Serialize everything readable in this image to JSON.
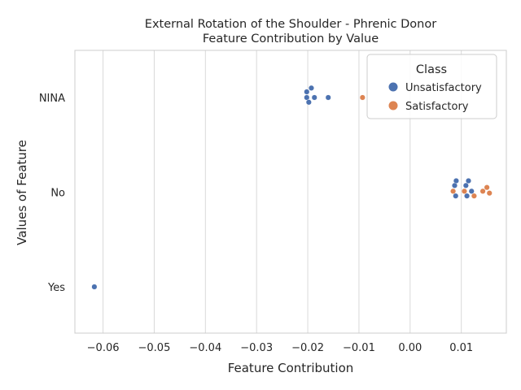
{
  "chart_data": {
    "type": "scatter",
    "title": "External Rotation of the Shoulder - Phrenic Donor",
    "subtitle": "Feature Contribution by Value",
    "xlabel": "Feature Contribution",
    "ylabel": "Values of Feature",
    "xlim": [
      -0.0655,
      0.0188
    ],
    "x_ticks": [
      -0.06,
      -0.05,
      -0.04,
      -0.03,
      -0.02,
      -0.01,
      0.0,
      0.01
    ],
    "x_tick_labels": [
      "−0.06",
      "−0.05",
      "−0.04",
      "−0.03",
      "−0.02",
      "−0.01",
      "0.00",
      "0.01"
    ],
    "categories": [
      "NINA",
      "No",
      "Yes"
    ],
    "grid": "vertical",
    "legend": {
      "title": "Class",
      "placement": "top-right"
    },
    "colors": {
      "Unsatisfactory": "#4c72b0",
      "Satisfactory": "#dd8452"
    },
    "series": [
      {
        "name": "Unsatisfactory",
        "color": "#4c72b0",
        "points": [
          {
            "category": "NINA",
            "x": -0.0202,
            "jitter": 0.06
          },
          {
            "category": "NINA",
            "x": -0.0193,
            "jitter": 0.1
          },
          {
            "category": "NINA",
            "x": -0.0202,
            "jitter": 0.0
          },
          {
            "category": "NINA",
            "x": -0.0187,
            "jitter": 0.0
          },
          {
            "category": "NINA",
            "x": -0.0198,
            "jitter": -0.05
          },
          {
            "category": "NINA",
            "x": -0.016,
            "jitter": 0.0
          },
          {
            "category": "No",
            "x": 0.009,
            "jitter": 0.12
          },
          {
            "category": "No",
            "x": 0.0114,
            "jitter": 0.12
          },
          {
            "category": "No",
            "x": 0.0087,
            "jitter": 0.07
          },
          {
            "category": "No",
            "x": 0.0109,
            "jitter": 0.07
          },
          {
            "category": "No",
            "x": 0.012,
            "jitter": 0.01
          },
          {
            "category": "No",
            "x": 0.0089,
            "jitter": -0.04
          },
          {
            "category": "No",
            "x": 0.0111,
            "jitter": -0.04
          },
          {
            "category": "Yes",
            "x": -0.0617,
            "jitter": 0.0
          }
        ]
      },
      {
        "name": "Satisfactory",
        "color": "#dd8452",
        "points": [
          {
            "category": "NINA",
            "x": -0.0093,
            "jitter": 0.0
          },
          {
            "category": "No",
            "x": 0.0084,
            "jitter": 0.01
          },
          {
            "category": "No",
            "x": 0.0106,
            "jitter": 0.01
          },
          {
            "category": "No",
            "x": 0.0142,
            "jitter": 0.01
          },
          {
            "category": "No",
            "x": 0.015,
            "jitter": 0.05
          },
          {
            "category": "No",
            "x": 0.0155,
            "jitter": -0.01
          },
          {
            "category": "No",
            "x": 0.0125,
            "jitter": -0.04
          }
        ]
      }
    ]
  }
}
